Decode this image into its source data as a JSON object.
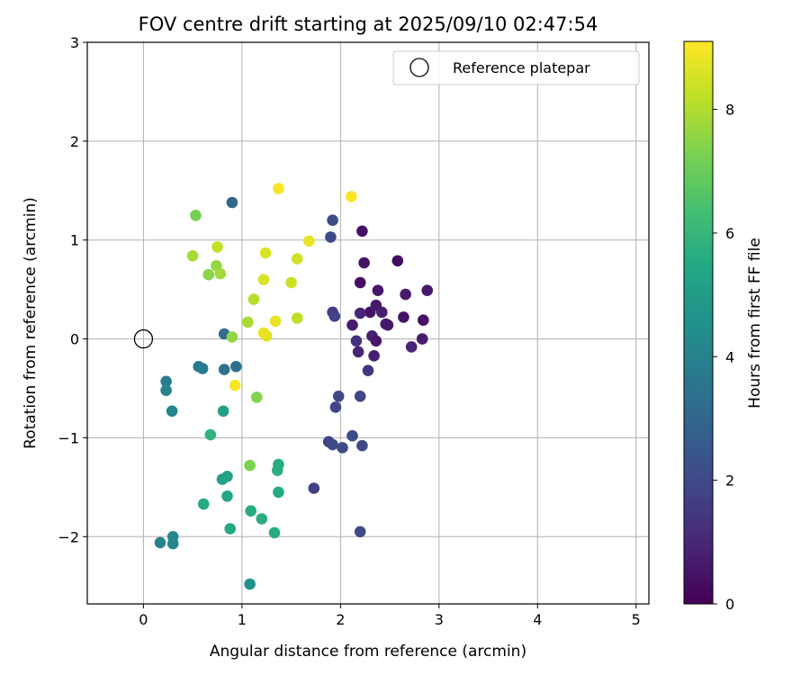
{
  "chart_data": {
    "type": "scatter",
    "title": "FOV centre drift starting at 2025/09/10 02:47:54",
    "xlabel": "Angular distance from reference (arcmin)",
    "ylabel": "Rotation from reference (arcmin)",
    "xlim": [
      -0.57,
      5.13
    ],
    "ylim": [
      -2.68,
      3.0
    ],
    "xticks": [
      0,
      1,
      2,
      3,
      4,
      5
    ],
    "yticks": [
      -2,
      -1,
      0,
      1,
      2,
      3
    ],
    "grid": true,
    "legend": {
      "placement": "top-right",
      "entries": [
        "Reference platepar"
      ]
    },
    "reference_point": {
      "name": "Reference platepar",
      "x": 0.0,
      "y": 0.0
    },
    "colorbar": {
      "label": "Hours from first FF file",
      "colormap": "viridis",
      "range": [
        0,
        9.1
      ],
      "ticks": [
        0,
        2,
        4,
        6,
        8
      ]
    },
    "series": [
      {
        "x": [
          2.58,
          2.22,
          2.24,
          2.38,
          2.66,
          2.2,
          2.3,
          2.36,
          2.42,
          2.46,
          2.64,
          2.84,
          2.88,
          2.12,
          2.18,
          2.32,
          2.48,
          2.2,
          2.34,
          2.72,
          2.83,
          2.36,
          2.16,
          2.28,
          1.92,
          1.94,
          1.9,
          1.92,
          1.98,
          1.95,
          2.2,
          2.12,
          1.88,
          1.92,
          2.02,
          2.22,
          2.2,
          1.73,
          0.9,
          0.82,
          0.82,
          0.94,
          0.56,
          0.6,
          0.23,
          0.23,
          0.29,
          0.3,
          0.3,
          0.17,
          0.81,
          0.8,
          0.85,
          0.85,
          0.88,
          0.61,
          1.09,
          1.2,
          1.33,
          1.37,
          1.37,
          1.36,
          1.08,
          0.68,
          0.53,
          1.08,
          1.15,
          0.5,
          0.75,
          0.74,
          0.78,
          0.66,
          1.12,
          1.06,
          0.9,
          1.5,
          1.56,
          1.24,
          1.22,
          1.25,
          1.34,
          1.56,
          1.68,
          1.37,
          2.11,
          0.93,
          1.22
        ],
        "y": [
          0.79,
          1.09,
          0.77,
          0.49,
          0.45,
          0.57,
          0.27,
          0.34,
          0.27,
          0.15,
          0.22,
          0.19,
          0.49,
          0.14,
          -0.13,
          0.03,
          0.14,
          0.26,
          -0.17,
          -0.08,
          0.0,
          -0.02,
          -0.02,
          -0.32,
          0.27,
          0.23,
          1.03,
          1.2,
          -0.58,
          -0.69,
          -0.58,
          -0.98,
          -1.04,
          -1.07,
          -1.1,
          -1.08,
          -1.95,
          -1.51,
          1.38,
          0.05,
          -0.31,
          -0.28,
          -0.28,
          -0.3,
          -0.43,
          -0.52,
          -0.73,
          -2.0,
          -2.07,
          -2.06,
          -0.73,
          -1.42,
          -1.39,
          -1.59,
          -1.92,
          -1.67,
          -1.74,
          -1.82,
          -1.96,
          -1.55,
          -1.27,
          -1.33,
          -2.48,
          -0.97,
          1.25,
          -1.28,
          -0.59,
          0.84,
          0.93,
          0.74,
          0.66,
          0.65,
          0.4,
          0.17,
          0.02,
          0.57,
          0.81,
          0.87,
          0.6,
          0.03,
          0.18,
          0.21,
          0.99,
          1.52,
          1.44,
          -0.47,
          0.06
        ],
        "hours": [
          0.3,
          0.4,
          0.5,
          0.6,
          0.7,
          0.3,
          0.5,
          0.6,
          0.8,
          0.7,
          0.5,
          0.4,
          0.6,
          0.7,
          0.9,
          0.8,
          0.6,
          1.0,
          0.8,
          0.9,
          0.7,
          0.6,
          1.3,
          1.4,
          1.6,
          1.8,
          2.0,
          2.1,
          2.0,
          1.9,
          1.9,
          2.1,
          1.8,
          2.0,
          2.1,
          2.0,
          2.1,
          1.7,
          3.0,
          3.2,
          3.4,
          3.3,
          3.6,
          3.7,
          3.8,
          4.0,
          4.1,
          4.2,
          4.1,
          4.0,
          5.1,
          5.2,
          5.3,
          5.4,
          5.5,
          5.5,
          5.6,
          5.7,
          5.6,
          5.5,
          5.6,
          5.7,
          4.6,
          5.9,
          7.2,
          7.3,
          7.4,
          7.9,
          8.3,
          7.6,
          7.8,
          7.5,
          8.1,
          7.9,
          7.6,
          8.4,
          8.5,
          8.6,
          8.6,
          8.7,
          8.8,
          8.2,
          8.8,
          9.0,
          9.0,
          9.0,
          8.8
        ]
      }
    ]
  }
}
